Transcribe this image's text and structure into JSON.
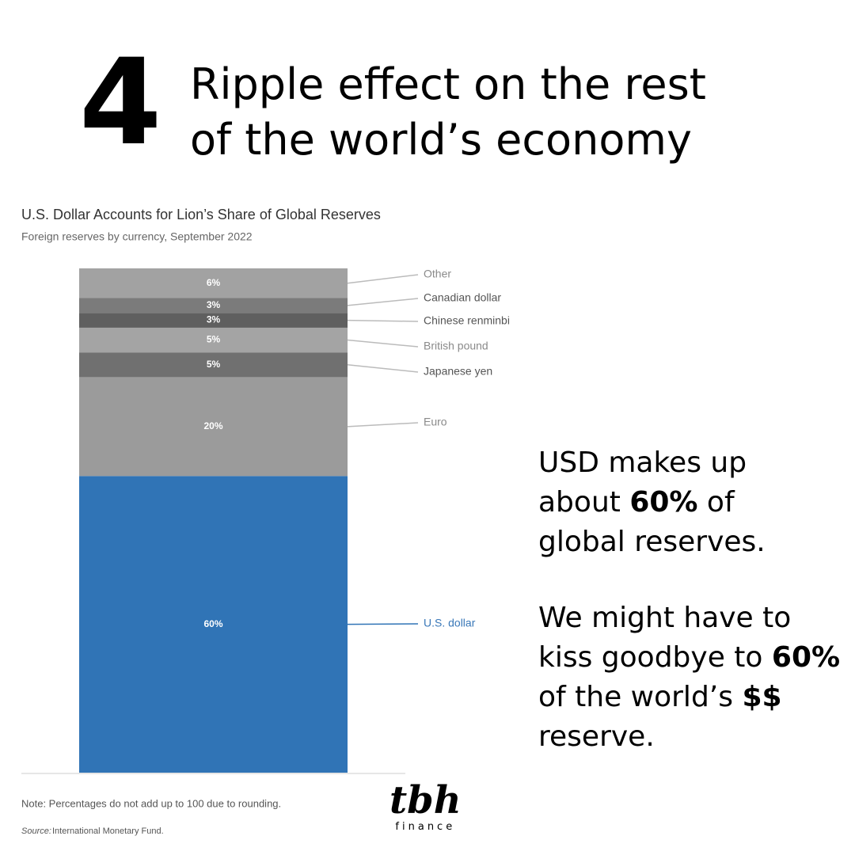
{
  "header": {
    "number": "4",
    "title_lines": [
      "Ripple effect on the rest",
      "of the world’s economy"
    ]
  },
  "chart_data": {
    "type": "stacked-bar",
    "title": "U.S. Dollar Accounts for Lion’s Share of Global Reserves",
    "subtitle": "Foreign reserves by currency, September 2022",
    "categories": [
      "U.S. dollar",
      "Euro",
      "Japanese yen",
      "British pound",
      "Chinese renminbi",
      "Canadian dollar",
      "Other"
    ],
    "values": [
      60,
      20,
      5,
      5,
      3,
      3,
      6
    ],
    "value_labels": [
      "60%",
      "20%",
      "5%",
      "5%",
      "3%",
      "3%",
      "6%"
    ],
    "colors": [
      "#3074b6",
      "#9b9b9b",
      "#707070",
      "#a4a4a4",
      "#5f5f5f",
      "#7b7b7b",
      "#a2a2a2"
    ],
    "label_colors": [
      "#3a78b8",
      "#8a8a8a",
      "#555555",
      "#8a8a8a",
      "#555555",
      "#555555",
      "#8a8a8a"
    ],
    "note": "Note: Percentages do not add up to 100 due to rounding.",
    "source_label": "Source:",
    "source": "International Monetary Fund."
  },
  "side_text": [
    [
      {
        "text": "USD makes up about ",
        "bold": false
      },
      {
        "text": "60%",
        "bold": true
      },
      {
        "text": " of global reserves.",
        "bold": false
      }
    ],
    [
      {
        "text": "We might have to kiss goodbye to ",
        "bold": false
      },
      {
        "text": "60%",
        "bold": true
      },
      {
        "text": " of the world’s ",
        "bold": false
      },
      {
        "text": "$$",
        "bold": true
      },
      {
        "text": " reserve.",
        "bold": false
      }
    ]
  ],
  "logo": {
    "main": "tbh",
    "sub": "finance"
  }
}
